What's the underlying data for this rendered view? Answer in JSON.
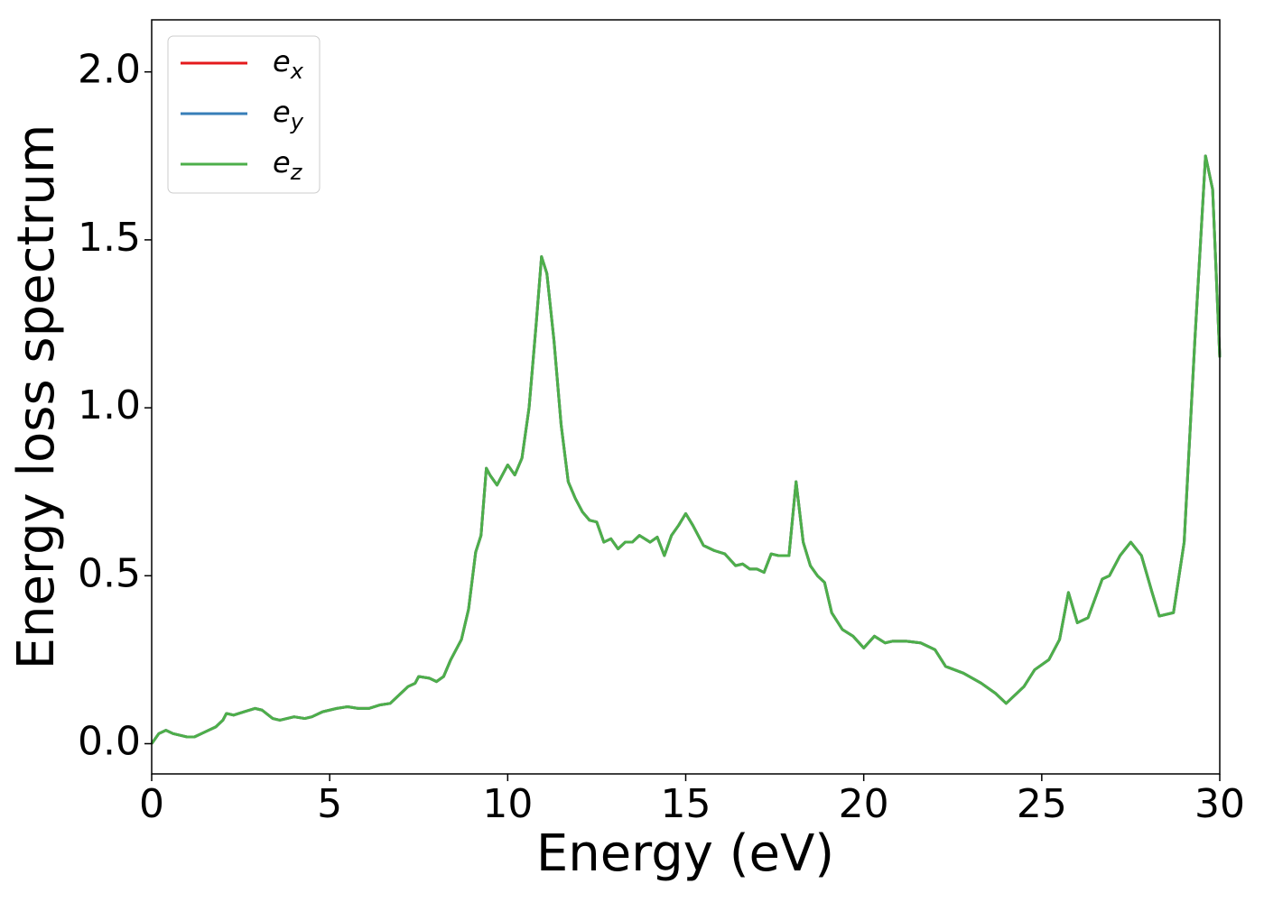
{
  "chart_data": {
    "type": "line",
    "xlabel": "Energy (eV)",
    "ylabel": "Energy loss spectrum",
    "x": [
      0,
      0.2,
      0.4,
      0.6,
      1.0,
      1.2,
      1.5,
      1.8,
      2.0,
      2.1,
      2.3,
      2.6,
      2.9,
      3.1,
      3.4,
      3.6,
      4.0,
      4.3,
      4.5,
      4.8,
      5.2,
      5.5,
      5.8,
      6.1,
      6.4,
      6.7,
      7.0,
      7.2,
      7.4,
      7.5,
      7.8,
      8.0,
      8.2,
      8.4,
      8.7,
      8.9,
      9.1,
      9.25,
      9.4,
      9.5,
      9.7,
      9.85,
      10.0,
      10.2,
      10.4,
      10.6,
      10.8,
      10.95,
      11.1,
      11.3,
      11.5,
      11.7,
      11.9,
      12.1,
      12.3,
      12.5,
      12.7,
      12.9,
      13.1,
      13.3,
      13.5,
      13.7,
      14.0,
      14.2,
      14.4,
      14.6,
      14.8,
      15.0,
      15.2,
      15.5,
      15.8,
      16.1,
      16.4,
      16.6,
      16.8,
      17.0,
      17.2,
      17.4,
      17.6,
      17.9,
      18.1,
      18.3,
      18.5,
      18.7,
      18.9,
      19.1,
      19.4,
      19.7,
      20.0,
      20.3,
      20.6,
      20.8,
      21.2,
      21.6,
      22.0,
      22.3,
      22.8,
      23.3,
      23.7,
      24.0,
      24.5,
      24.8,
      25.2,
      25.5,
      25.75,
      26.0,
      26.3,
      26.7,
      26.9,
      27.2,
      27.5,
      27.8,
      28.1,
      28.3,
      28.7,
      29.0,
      29.3,
      29.6,
      29.8,
      30.0
    ],
    "series": [
      {
        "name": "e_x",
        "color": "#e41a1c",
        "values": [
          0,
          0.03,
          0.04,
          0.03,
          0.02,
          0.02,
          0.035,
          0.05,
          0.07,
          0.09,
          0.085,
          0.095,
          0.105,
          0.1,
          0.075,
          0.07,
          0.08,
          0.075,
          0.08,
          0.095,
          0.105,
          0.11,
          0.105,
          0.105,
          0.115,
          0.12,
          0.15,
          0.17,
          0.18,
          0.2,
          0.195,
          0.185,
          0.2,
          0.25,
          0.31,
          0.4,
          0.57,
          0.62,
          0.82,
          0.8,
          0.77,
          0.8,
          0.83,
          0.8,
          0.85,
          1.0,
          1.25,
          1.45,
          1.4,
          1.2,
          0.95,
          0.78,
          0.73,
          0.69,
          0.665,
          0.66,
          0.6,
          0.61,
          0.58,
          0.6,
          0.6,
          0.62,
          0.6,
          0.615,
          0.56,
          0.62,
          0.65,
          0.685,
          0.65,
          0.59,
          0.575,
          0.565,
          0.53,
          0.535,
          0.52,
          0.52,
          0.51,
          0.565,
          0.56,
          0.56,
          0.78,
          0.6,
          0.53,
          0.5,
          0.48,
          0.39,
          0.34,
          0.32,
          0.285,
          0.32,
          0.3,
          0.305,
          0.305,
          0.3,
          0.28,
          0.23,
          0.21,
          0.18,
          0.15,
          0.12,
          0.17,
          0.22,
          0.25,
          0.31,
          0.45,
          0.36,
          0.375,
          0.49,
          0.5,
          0.56,
          0.6,
          0.56,
          0.45,
          0.38,
          0.39,
          0.6,
          1.2,
          1.75,
          1.65,
          1.15
        ]
      },
      {
        "name": "e_y",
        "color": "#377eb8",
        "values": [
          0,
          0.03,
          0.04,
          0.03,
          0.02,
          0.02,
          0.035,
          0.05,
          0.07,
          0.09,
          0.085,
          0.095,
          0.105,
          0.1,
          0.075,
          0.07,
          0.08,
          0.075,
          0.08,
          0.095,
          0.105,
          0.11,
          0.105,
          0.105,
          0.115,
          0.12,
          0.15,
          0.17,
          0.18,
          0.2,
          0.195,
          0.185,
          0.2,
          0.25,
          0.31,
          0.4,
          0.57,
          0.62,
          0.82,
          0.8,
          0.77,
          0.8,
          0.83,
          0.8,
          0.85,
          1.0,
          1.25,
          1.45,
          1.4,
          1.2,
          0.95,
          0.78,
          0.73,
          0.69,
          0.665,
          0.66,
          0.6,
          0.61,
          0.58,
          0.6,
          0.6,
          0.62,
          0.6,
          0.615,
          0.56,
          0.62,
          0.65,
          0.685,
          0.65,
          0.59,
          0.575,
          0.565,
          0.53,
          0.535,
          0.52,
          0.52,
          0.51,
          0.565,
          0.56,
          0.56,
          0.78,
          0.6,
          0.53,
          0.5,
          0.48,
          0.39,
          0.34,
          0.32,
          0.285,
          0.32,
          0.3,
          0.305,
          0.305,
          0.3,
          0.28,
          0.23,
          0.21,
          0.18,
          0.15,
          0.12,
          0.17,
          0.22,
          0.25,
          0.31,
          0.45,
          0.36,
          0.375,
          0.49,
          0.5,
          0.56,
          0.6,
          0.56,
          0.45,
          0.38,
          0.39,
          0.6,
          1.2,
          1.75,
          1.65,
          1.15
        ]
      },
      {
        "name": "e_z",
        "color": "#4daf4a",
        "values": [
          0,
          0.03,
          0.04,
          0.03,
          0.02,
          0.02,
          0.035,
          0.05,
          0.07,
          0.09,
          0.085,
          0.095,
          0.105,
          0.1,
          0.075,
          0.07,
          0.08,
          0.075,
          0.08,
          0.095,
          0.105,
          0.11,
          0.105,
          0.105,
          0.115,
          0.12,
          0.15,
          0.17,
          0.18,
          0.2,
          0.195,
          0.185,
          0.2,
          0.25,
          0.31,
          0.4,
          0.57,
          0.62,
          0.82,
          0.8,
          0.77,
          0.8,
          0.83,
          0.8,
          0.85,
          1.0,
          1.25,
          1.45,
          1.4,
          1.2,
          0.95,
          0.78,
          0.73,
          0.69,
          0.665,
          0.66,
          0.6,
          0.61,
          0.58,
          0.6,
          0.6,
          0.62,
          0.6,
          0.615,
          0.56,
          0.62,
          0.65,
          0.685,
          0.65,
          0.59,
          0.575,
          0.565,
          0.53,
          0.535,
          0.52,
          0.52,
          0.51,
          0.565,
          0.56,
          0.56,
          0.78,
          0.6,
          0.53,
          0.5,
          0.48,
          0.39,
          0.34,
          0.32,
          0.285,
          0.32,
          0.3,
          0.305,
          0.305,
          0.3,
          0.28,
          0.23,
          0.21,
          0.18,
          0.15,
          0.12,
          0.17,
          0.22,
          0.25,
          0.31,
          0.45,
          0.36,
          0.375,
          0.49,
          0.5,
          0.56,
          0.6,
          0.56,
          0.45,
          0.38,
          0.39,
          0.6,
          1.2,
          1.75,
          1.65,
          1.15
        ]
      }
    ],
    "xlim": [
      0,
      30
    ],
    "xticks": [
      0,
      5,
      10,
      15,
      20,
      25,
      30
    ],
    "ylim": [
      -0.09,
      2.155
    ],
    "yticks": [
      {
        "value": 0,
        "label": "0.0"
      },
      {
        "value": 0.5,
        "label": "0.5"
      },
      {
        "value": 1,
        "label": "1.0"
      },
      {
        "value": 1.5,
        "label": "1.5"
      },
      {
        "value": 2,
        "label": "2.0"
      }
    ],
    "grid": false,
    "legend": "upper left"
  }
}
